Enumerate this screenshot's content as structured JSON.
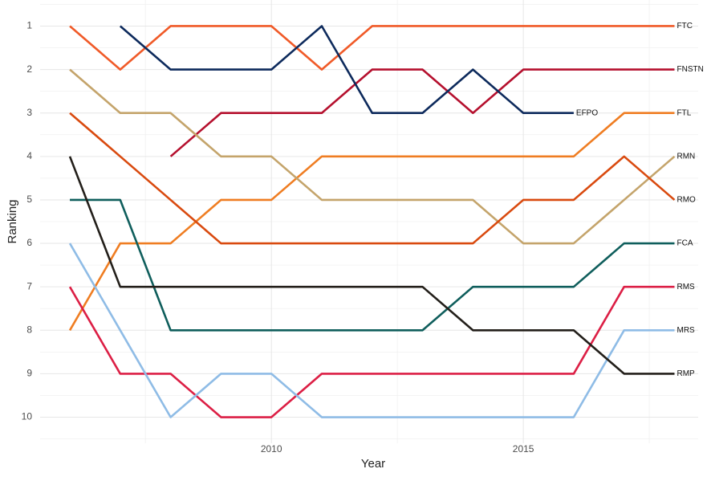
{
  "chart_data": {
    "type": "line",
    "x_label": "Year",
    "y_label": "Ranking",
    "x": [
      2006,
      2007,
      2008,
      2009,
      2010,
      2011,
      2012,
      2013,
      2014,
      2015,
      2016,
      2017,
      2018
    ],
    "xlim": [
      2005.41,
      2018.47
    ],
    "xticks": [
      2010,
      2015
    ],
    "ylim": [
      10.6,
      0.4
    ],
    "yticks": [
      1,
      2,
      3,
      4,
      5,
      6,
      7,
      8,
      9,
      10
    ],
    "grid": true,
    "series": [
      {
        "name": "FTC",
        "color": "#f05a28",
        "values": [
          1,
          2,
          1,
          1,
          1,
          2,
          1,
          1,
          1,
          1,
          1,
          1,
          1
        ]
      },
      {
        "name": "FNSTN",
        "color": "#b5102e",
        "values": [
          null,
          null,
          4,
          3,
          3,
          3,
          2,
          2,
          3,
          2,
          2,
          2,
          2
        ]
      },
      {
        "name": "EFPO",
        "color": "#0d2a5c",
        "values": [
          null,
          1,
          2,
          2,
          2,
          1,
          3,
          3,
          2,
          3,
          3,
          null,
          null
        ]
      },
      {
        "name": "FTL",
        "color": "#ef7d22",
        "values": [
          8,
          6,
          6,
          5,
          5,
          4,
          4,
          4,
          4,
          4,
          4,
          3,
          3
        ]
      },
      {
        "name": "RMN",
        "color": "#c4a46b",
        "values": [
          2,
          3,
          3,
          4,
          4,
          5,
          5,
          5,
          5,
          6,
          6,
          5,
          4
        ]
      },
      {
        "name": "RMO",
        "color": "#d94a0f",
        "values": [
          3,
          4,
          5,
          6,
          6,
          6,
          6,
          6,
          6,
          5,
          5,
          4,
          5
        ]
      },
      {
        "name": "FCA",
        "color": "#0f5e5c",
        "values": [
          5,
          5,
          8,
          8,
          8,
          8,
          8,
          8,
          7,
          7,
          7,
          6,
          6
        ]
      },
      {
        "name": "RMS",
        "color": "#dc1f45",
        "values": [
          7,
          9,
          9,
          10,
          10,
          9,
          9,
          9,
          9,
          9,
          9,
          7,
          7
        ]
      },
      {
        "name": "MRS",
        "color": "#8fbce6",
        "values": [
          6,
          8,
          10,
          9,
          9,
          10,
          10,
          10,
          10,
          10,
          10,
          8,
          8
        ]
      },
      {
        "name": "RMP",
        "color": "#231f1a",
        "values": [
          4,
          7,
          7,
          7,
          7,
          7,
          7,
          7,
          8,
          8,
          8,
          9,
          9
        ]
      }
    ]
  }
}
